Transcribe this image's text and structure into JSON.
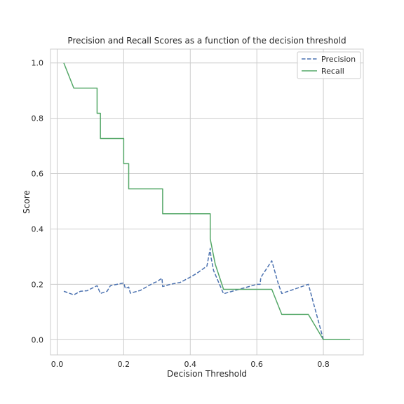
{
  "chart_data": {
    "type": "line",
    "title": "Precision and Recall Scores as a function of the decision threshold",
    "xlabel": "Decision Threshold",
    "ylabel": "Score",
    "xlim": [
      -0.02,
      0.92
    ],
    "ylim": [
      -0.055,
      1.05
    ],
    "xticks": [
      "0.0",
      "0.2",
      "0.4",
      "0.6",
      "0.8"
    ],
    "yticks": [
      "0.0",
      "0.2",
      "0.4",
      "0.6",
      "0.8",
      "1.0"
    ],
    "xtick_values": [
      0.0,
      0.2,
      0.4,
      0.6,
      0.8
    ],
    "ytick_values": [
      0.0,
      0.2,
      0.4,
      0.6,
      0.8,
      1.0
    ],
    "grid": true,
    "legend_position": "top-right",
    "series": [
      {
        "name": "Precision",
        "color": "#4c72b0",
        "dash": true,
        "x": [
          0.02,
          0.05,
          0.07,
          0.09,
          0.1,
          0.12,
          0.13,
          0.15,
          0.16,
          0.18,
          0.2,
          0.205,
          0.215,
          0.22,
          0.25,
          0.27,
          0.29,
          0.3,
          0.315,
          0.317,
          0.34,
          0.37,
          0.4,
          0.42,
          0.45,
          0.46,
          0.462,
          0.47,
          0.5,
          0.55,
          0.6,
          0.61,
          0.612,
          0.645,
          0.665,
          0.675,
          0.755,
          0.8,
          0.88
        ],
        "y": [
          0.175,
          0.162,
          0.175,
          0.177,
          0.183,
          0.195,
          0.167,
          0.175,
          0.195,
          0.2,
          0.205,
          0.185,
          0.19,
          0.168,
          0.178,
          0.192,
          0.205,
          0.21,
          0.222,
          0.192,
          0.2,
          0.207,
          0.226,
          0.24,
          0.266,
          0.33,
          0.3,
          0.25,
          0.166,
          0.183,
          0.2,
          0.2,
          0.225,
          0.285,
          0.2,
          0.167,
          0.2,
          0.0,
          0.0
        ]
      },
      {
        "name": "Recall",
        "color": "#55a868",
        "dash": false,
        "x": [
          0.02,
          0.05,
          0.12,
          0.12,
          0.13,
          0.13,
          0.2,
          0.2,
          0.215,
          0.215,
          0.317,
          0.317,
          0.46,
          0.46,
          0.475,
          0.5,
          0.645,
          0.675,
          0.755,
          0.8,
          0.88
        ],
        "y": [
          1.0,
          0.909,
          0.909,
          0.818,
          0.818,
          0.727,
          0.727,
          0.636,
          0.636,
          0.545,
          0.545,
          0.455,
          0.455,
          0.364,
          0.273,
          0.182,
          0.182,
          0.091,
          0.091,
          0.0,
          0.0
        ]
      }
    ]
  }
}
